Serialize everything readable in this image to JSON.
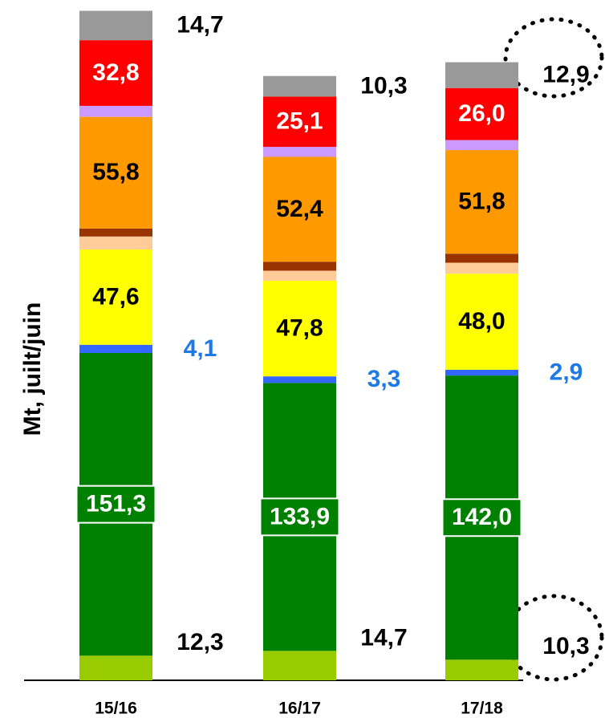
{
  "chart_data": {
    "type": "stacked_bar",
    "y_label": "Mt, juilt/juin",
    "categories": [
      "15/16",
      "16/17",
      "17/18"
    ],
    "ylim": [
      0,
      340
    ],
    "series": [
      {
        "color": "#99cc00",
        "values": [
          12.3,
          14.7,
          10.3
        ],
        "value_labels": [
          "12,3",
          "14,7",
          "10,3"
        ],
        "label_color": "#000000",
        "label_position": "above-right"
      },
      {
        "color": "#008000",
        "values": [
          151.3,
          133.9,
          142.0
        ],
        "value_labels": [
          "151,3",
          "133,9",
          "142,0"
        ],
        "label_color": "#ffffff",
        "label_position": "inside",
        "label_box": true
      },
      {
        "color": "#3366ff",
        "values": [
          4.1,
          3.3,
          2.9
        ],
        "value_labels": [
          "4,1",
          "3,3",
          "2,9"
        ],
        "label_color": "#1e78e6",
        "label_position": "right"
      },
      {
        "color": "#ffff00",
        "values": [
          47.6,
          47.8,
          48.0
        ],
        "value_labels": [
          "47,6",
          "47,8",
          "48,0"
        ],
        "label_color": "#000000",
        "label_position": "inside"
      },
      {
        "color": "#ffcc99",
        "values": [
          6.5,
          5.0,
          5.5
        ]
      },
      {
        "color": "#993300",
        "values": [
          4.0,
          4.5,
          4.5
        ]
      },
      {
        "color": "#ff9900",
        "values": [
          55.8,
          52.4,
          51.8
        ],
        "value_labels": [
          "55,8",
          "52,4",
          "51,8"
        ],
        "label_color": "#000000",
        "label_position": "inside"
      },
      {
        "color": "#cc99ff",
        "values": [
          5.5,
          5.0,
          5.0
        ]
      },
      {
        "color": "#ff0000",
        "values": [
          32.8,
          25.1,
          26.0
        ],
        "value_labels": [
          "32,8",
          "25,1",
          "26,0"
        ],
        "label_color": "#ffffff",
        "label_position": "inside"
      },
      {
        "color": "#999999",
        "values": [
          14.7,
          10.3,
          12.9
        ],
        "value_labels": [
          "14,7",
          "10,3",
          "12,9"
        ],
        "label_color": "#000000",
        "label_position": "right"
      }
    ]
  }
}
